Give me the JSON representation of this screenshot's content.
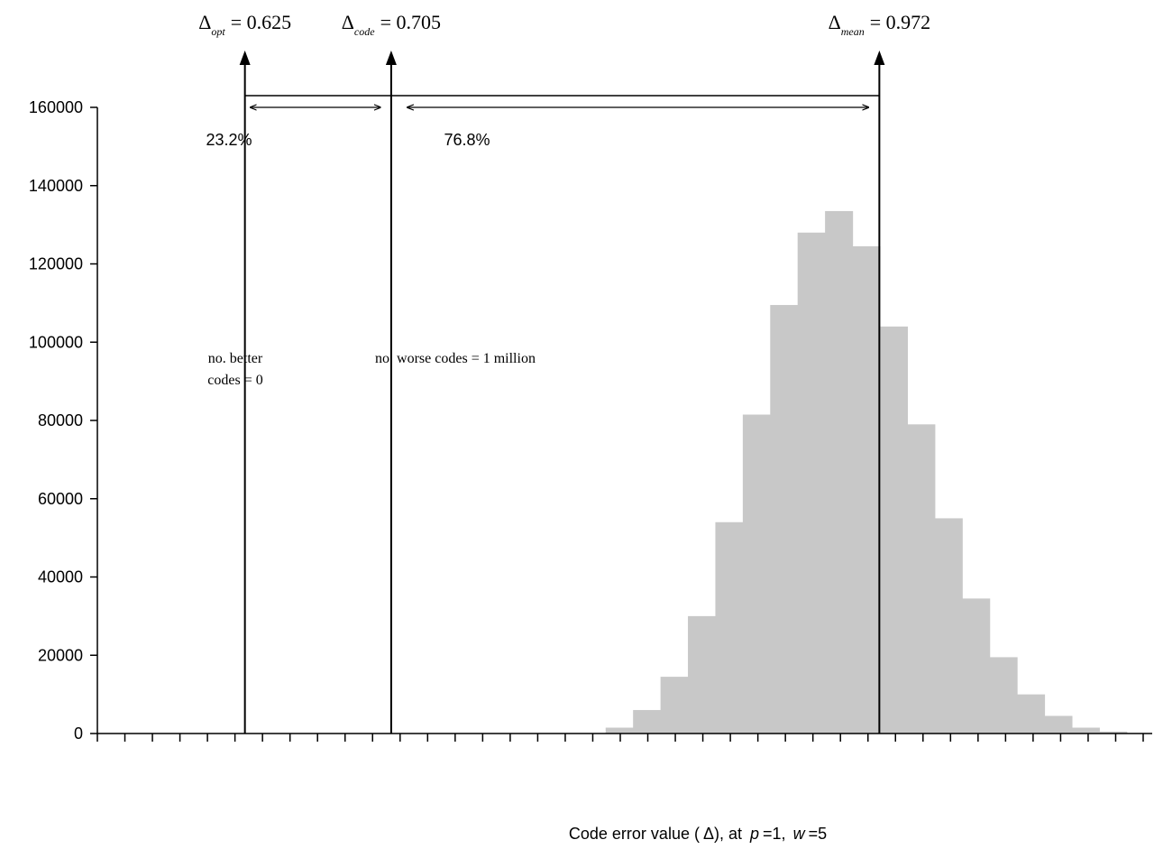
{
  "chart_data": {
    "type": "bar",
    "xlabel": {
      "prefix": "Code error value (",
      "symbol": "Δ",
      "mid": "), at ",
      "p_var": "p",
      "p_val": "=1,",
      "w_var": "w",
      "w_val": "=5"
    },
    "ylabel": "",
    "ylim": [
      0,
      160000
    ],
    "y_ticks": [
      0,
      20000,
      40000,
      60000,
      80000,
      100000,
      120000,
      140000,
      160000
    ],
    "x_tick_count": 39,
    "x_range": [
      0.5443,
      1.1163
    ],
    "bin_width": 0.015,
    "bin_centers": [
      0.8298,
      0.8448,
      0.8598,
      0.8748,
      0.8898,
      0.9048,
      0.9198,
      0.9348,
      0.9498,
      0.9648,
      0.9798,
      0.9948,
      1.0098,
      1.0248,
      1.0398,
      1.0548,
      1.0698,
      1.0848,
      1.0998
    ],
    "values": [
      1500,
      6000,
      14500,
      30000,
      54000,
      81500,
      109500,
      128000,
      133500,
      124500,
      104000,
      79000,
      55000,
      34500,
      19500,
      10000,
      4500,
      1500,
      500
    ],
    "bar_color": "#c8c8c8",
    "markers": [
      {
        "label_base": "Δ",
        "label_sub": "opt",
        "label_value": "= 0.625",
        "x": 0.625
      },
      {
        "label_base": "Δ",
        "label_sub": "code",
        "label_value": "= 0.705",
        "x": 0.705
      },
      {
        "label_base": "Δ",
        "label_sub": "mean",
        "label_value": "= 0.972",
        "x": 0.972
      }
    ],
    "annotations": {
      "pct_left": "23.2%",
      "pct_right": "76.8%",
      "better_line1": "no. better",
      "better_line2": "codes = 0",
      "worse": "no. worse codes = 1 million"
    }
  }
}
